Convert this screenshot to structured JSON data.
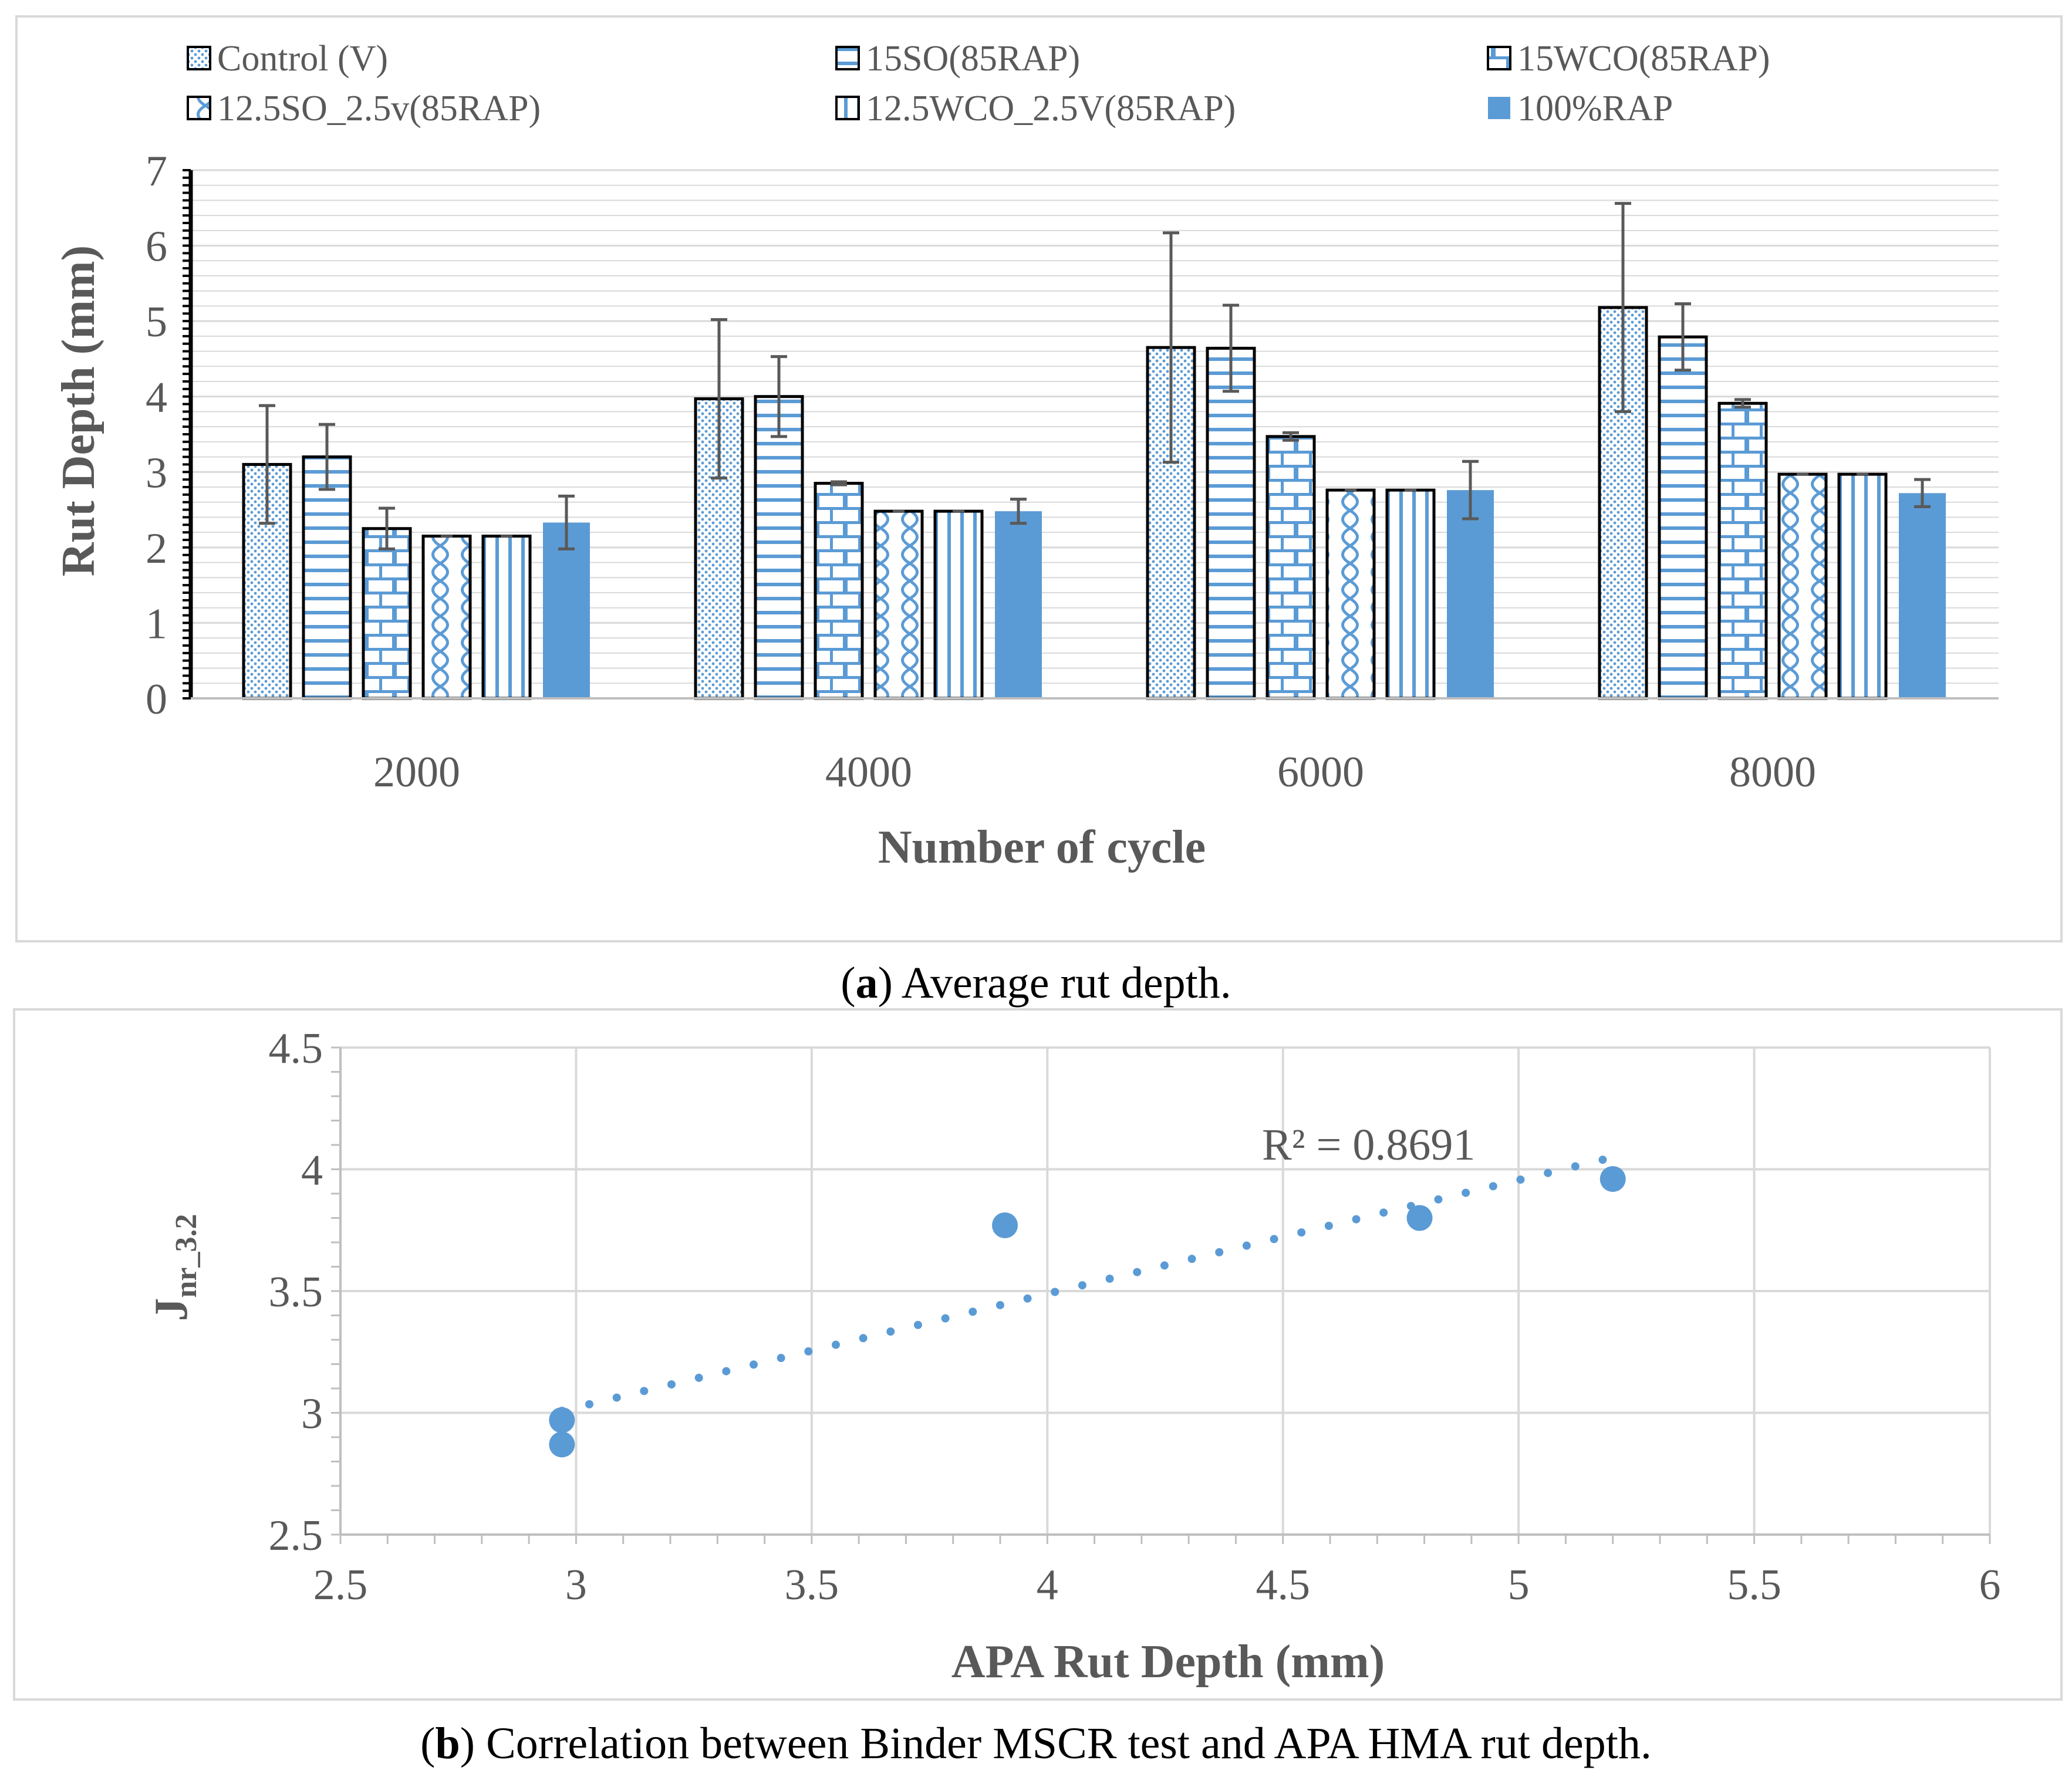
{
  "colors": {
    "blue": "#5b9bd5",
    "border": "#000000",
    "grid": "#d9d9d9",
    "error_bar": "#595959",
    "trend": "#5b9bd5",
    "text": "#595959"
  },
  "chart_data": [
    {
      "type": "bar",
      "title": "",
      "caption_label": "a",
      "caption_text": "Average rut depth.",
      "xlabel": "Number of cycle",
      "ylabel": "Rut Depth (mm)",
      "ylim": [
        0,
        7
      ],
      "yticks": [
        "0",
        "1",
        "2",
        "3",
        "4",
        "5",
        "6",
        "7"
      ],
      "grid": true,
      "legend_position": "top",
      "categories": [
        "2000",
        "4000",
        "6000",
        "8000"
      ],
      "series": [
        {
          "name": "Control (V)",
          "pattern": "dots",
          "values": [
            3.1,
            3.97,
            4.65,
            5.18
          ],
          "errors": [
            0.78,
            1.05,
            1.52,
            1.38
          ]
        },
        {
          "name": "15SO(85RAP)",
          "pattern": "hlines",
          "values": [
            3.2,
            4.0,
            4.64,
            4.79
          ],
          "errors": [
            0.43,
            0.53,
            0.57,
            0.44
          ]
        },
        {
          "name": "15WCO(85RAP)",
          "pattern": "bricks",
          "values": [
            2.25,
            2.85,
            3.47,
            3.91
          ],
          "errors": [
            0.27,
            0.02,
            0.05,
            0.05
          ]
        },
        {
          "name": "12.5SO_2.5v(85RAP)",
          "pattern": "waves",
          "values": [
            2.15,
            2.48,
            2.76,
            2.97
          ],
          "errors": [
            0,
            0,
            0,
            0
          ]
        },
        {
          "name": "12.5WCO_2.5V(85RAP)",
          "pattern": "vlines",
          "values": [
            2.15,
            2.48,
            2.76,
            2.97
          ],
          "errors": [
            0,
            0,
            0,
            0
          ]
        },
        {
          "name": "100%RAP",
          "pattern": "solid",
          "values": [
            2.33,
            2.48,
            2.76,
            2.72
          ],
          "errors": [
            0.35,
            0.16,
            0.38,
            0.18
          ]
        }
      ]
    },
    {
      "type": "scatter",
      "title": "",
      "caption_label": "b",
      "caption_text": "Correlation between Binder MSCR test and APA HMA rut depth.",
      "xlabel": "APA Rut Depth (mm)",
      "ylabel_main": "J",
      "ylabel_sub": "nr_3.2",
      "xlim": [
        2.5,
        6
      ],
      "ylim": [
        2.5,
        4.5
      ],
      "xticks": [
        "2.5",
        "3",
        "3.5",
        "4",
        "4.5",
        "5",
        "5.5",
        "6"
      ],
      "yticks": [
        "2.5",
        "3",
        "3.5",
        "4",
        "4.5"
      ],
      "grid": true,
      "points": [
        {
          "x": 2.97,
          "y": 2.97
        },
        {
          "x": 2.97,
          "y": 2.87
        },
        {
          "x": 3.91,
          "y": 3.77
        },
        {
          "x": 4.79,
          "y": 3.8
        },
        {
          "x": 5.2,
          "y": 3.96
        }
      ],
      "trendline": {
        "type": "linear-dotted",
        "x_start": 2.97,
        "x_end": 5.2
      },
      "annotation": "R² = 0.8691"
    }
  ]
}
